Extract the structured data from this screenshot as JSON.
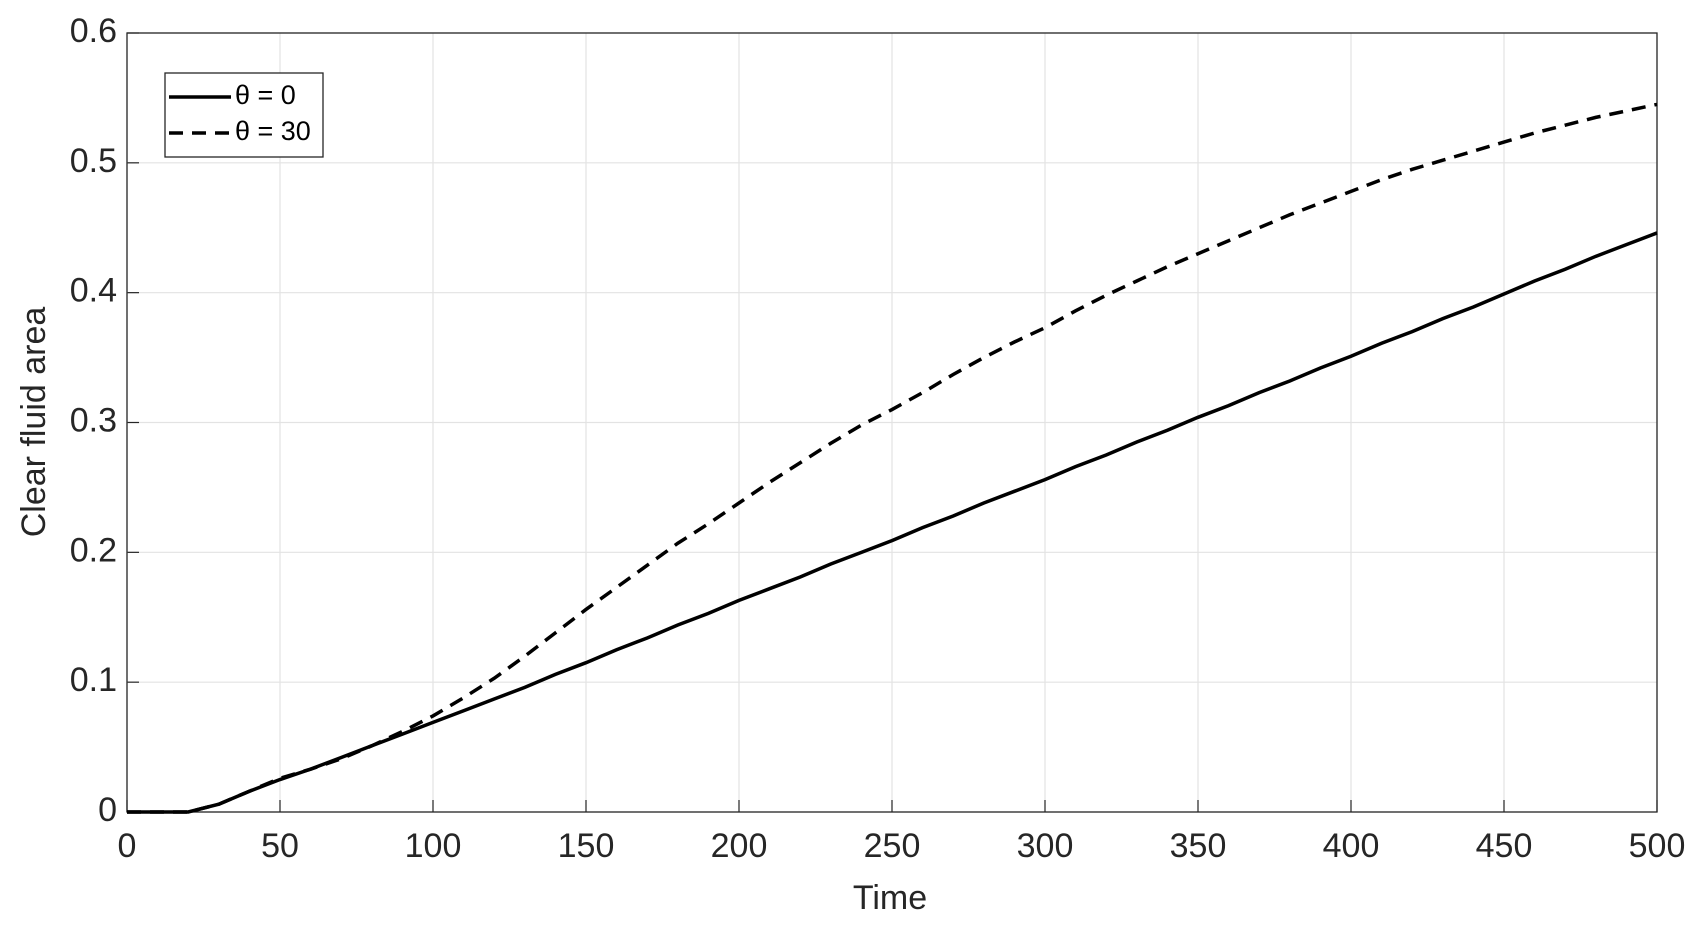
{
  "chart_data": {
    "type": "line",
    "xlabel": "Time",
    "ylabel": "Clear fluid area",
    "x": [
      0,
      10,
      20,
      30,
      40,
      50,
      60,
      70,
      80,
      90,
      100,
      110,
      120,
      130,
      140,
      150,
      160,
      170,
      180,
      190,
      200,
      210,
      220,
      230,
      240,
      250,
      260,
      270,
      280,
      290,
      300,
      310,
      320,
      330,
      340,
      350,
      360,
      370,
      380,
      390,
      400,
      410,
      420,
      430,
      440,
      450,
      460,
      470,
      480,
      490,
      500
    ],
    "series": [
      {
        "name": "θ = 0",
        "color": "#000000",
        "linestyle": "solid",
        "values": [
          0,
          0,
          0,
          0.006,
          0.016,
          0.025,
          0.033,
          0.042,
          0.051,
          0.06,
          0.069,
          0.078,
          0.087,
          0.096,
          0.106,
          0.115,
          0.125,
          0.134,
          0.144,
          0.153,
          0.163,
          0.172,
          0.181,
          0.191,
          0.2,
          0.209,
          0.219,
          0.228,
          0.238,
          0.247,
          0.256,
          0.266,
          0.275,
          0.285,
          0.294,
          0.304,
          0.313,
          0.323,
          0.332,
          0.342,
          0.351,
          0.361,
          0.37,
          0.38,
          0.389,
          0.399,
          0.409,
          0.418,
          0.428,
          0.437,
          0.446
        ]
      },
      {
        "name": "θ = 30",
        "color": "#000000",
        "linestyle": "dashed",
        "values": [
          0,
          0,
          0,
          0.006,
          0.016,
          0.026,
          0.033,
          0.041,
          0.051,
          0.062,
          0.074,
          0.088,
          0.103,
          0.12,
          0.138,
          0.156,
          0.173,
          0.19,
          0.207,
          0.222,
          0.238,
          0.254,
          0.269,
          0.284,
          0.298,
          0.31,
          0.323,
          0.337,
          0.35,
          0.362,
          0.373,
          0.386,
          0.398,
          0.409,
          0.42,
          0.43,
          0.44,
          0.45,
          0.46,
          0.469,
          0.478,
          0.487,
          0.495,
          0.502,
          0.509,
          0.516,
          0.523,
          0.529,
          0.535,
          0.54,
          0.545
        ]
      }
    ],
    "xlim": [
      0,
      500
    ],
    "xticks": [
      0,
      50,
      100,
      150,
      200,
      250,
      300,
      350,
      400,
      450,
      500
    ],
    "ylim": [
      0,
      0.6
    ],
    "yticks": [
      0,
      0.1,
      0.2,
      0.3,
      0.4,
      0.5,
      0.6
    ],
    "grid": true,
    "legend": "upper left"
  }
}
